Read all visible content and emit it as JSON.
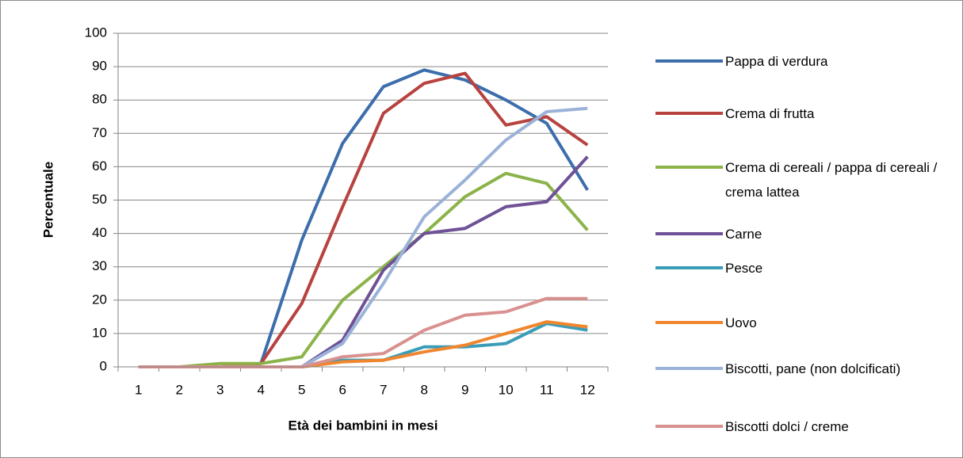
{
  "chart_data": {
    "type": "line",
    "x_label": "Età dei bambini in mesi",
    "y_label": "Percentuale",
    "categories": [
      "1",
      "2",
      "3",
      "4",
      "5",
      "6",
      "7",
      "8",
      "9",
      "10",
      "11",
      "12"
    ],
    "ylim": [
      0,
      100
    ],
    "yticks": [
      0,
      10,
      20,
      30,
      40,
      50,
      60,
      70,
      80,
      90,
      100
    ],
    "grid": true,
    "series": [
      {
        "name": "Pappa di verdura",
        "color": "#3C6EAC",
        "values": [
          0,
          0,
          0,
          1,
          38,
          67,
          84,
          89,
          86,
          80,
          73,
          53
        ]
      },
      {
        "name": "Crema di frutta",
        "color": "#B7423F",
        "values": [
          0,
          0,
          0,
          1,
          19,
          48,
          76,
          85,
          88,
          72.5,
          75,
          66.5
        ]
      },
      {
        "name": "Crema di cereali / pappa di cereali / crema lattea",
        "color": "#8BB34A",
        "values": [
          0,
          0,
          1,
          1,
          3,
          20,
          30,
          40,
          51,
          58,
          55,
          41
        ]
      },
      {
        "name": "Carne",
        "color": "#6E5196",
        "values": [
          0,
          0,
          0,
          0,
          0,
          8,
          29,
          40,
          41.5,
          48,
          49.5,
          63
        ]
      },
      {
        "name": "Pesce",
        "color": "#3A9DB8",
        "values": [
          0,
          0,
          0,
          0,
          0,
          2,
          2,
          6,
          6,
          7,
          13,
          11
        ]
      },
      {
        "name": "Uovo",
        "color": "#F0862E",
        "values": [
          0,
          0,
          0,
          0,
          0,
          1.5,
          2,
          4.5,
          6.5,
          10,
          13.5,
          12
        ]
      },
      {
        "name": "Biscotti, pane (non dolcificati)",
        "color": "#9BB2D8",
        "values": [
          0,
          0,
          0,
          0,
          0,
          7,
          25,
          45,
          56,
          68,
          76.5,
          77.5
        ]
      },
      {
        "name": "Biscotti dolci / creme",
        "color": "#D9918F",
        "values": [
          0,
          0,
          0,
          0,
          0,
          3,
          4,
          11,
          15.5,
          16.5,
          20.5,
          20.5
        ]
      }
    ]
  }
}
